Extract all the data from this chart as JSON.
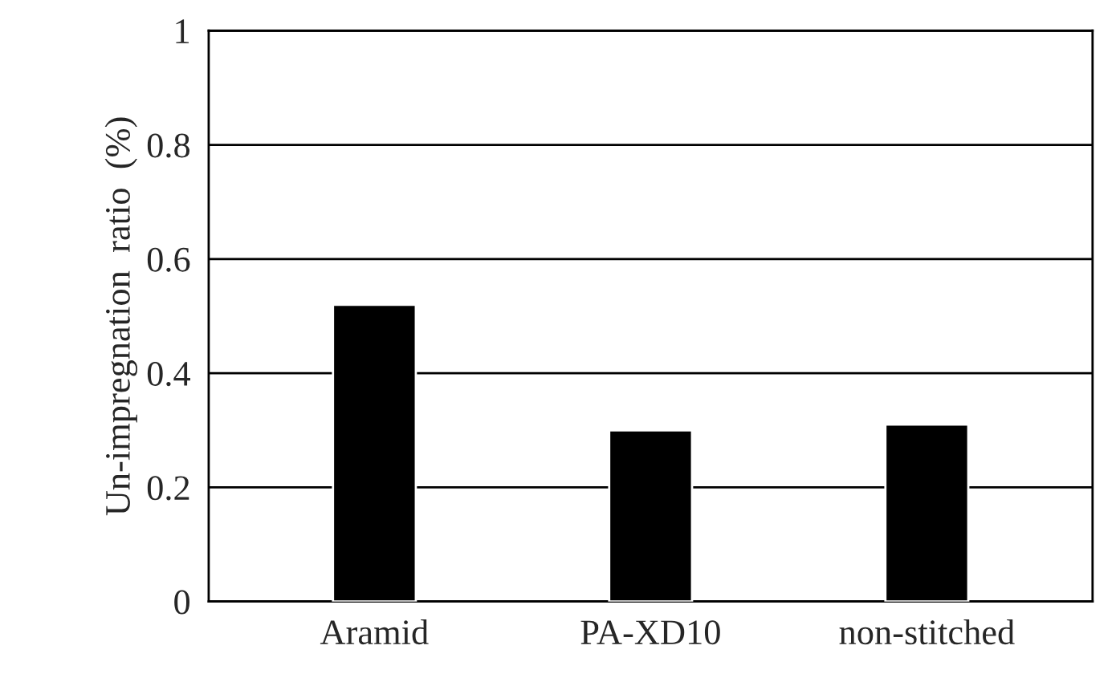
{
  "chart_data": {
    "type": "bar",
    "ylabel": "Un-impregnation  ratio  (%)",
    "categories": [
      "Aramid",
      "PA-XD10",
      "non-stitched"
    ],
    "values": [
      0.52,
      0.3,
      0.31
    ],
    "color": "#000000",
    "ylim": [
      0,
      1
    ],
    "yticks": [
      0,
      0.2,
      0.4,
      0.6,
      0.8,
      1
    ],
    "grid": "y"
  }
}
